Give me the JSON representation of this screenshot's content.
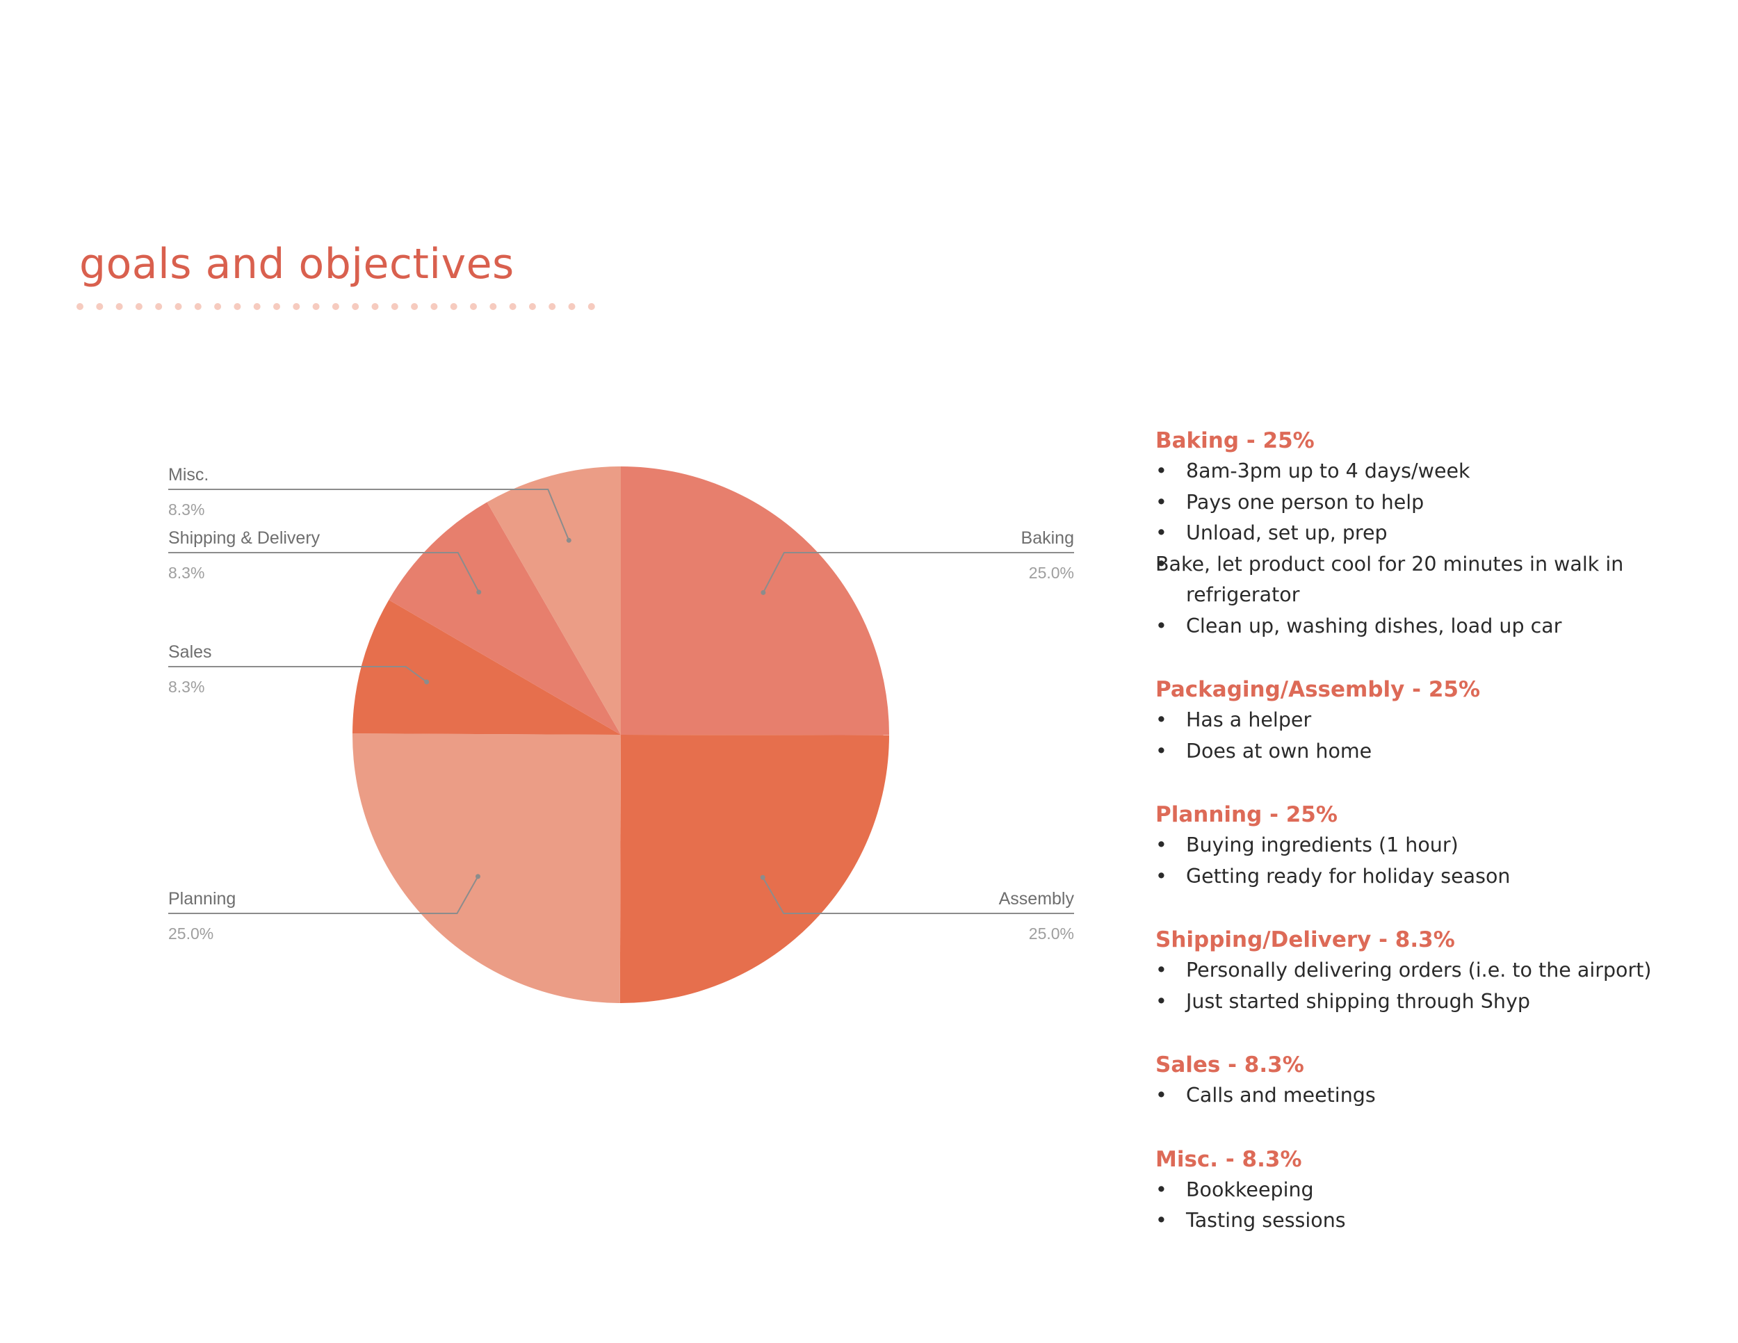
{
  "page": {
    "title": "goals and objectives"
  },
  "colors": {
    "title": "#d9604e",
    "section_title": "#dd6a57",
    "body_text": "#2a2a2a",
    "label_text": "#6e6e6e",
    "pct_text": "#9e9e9e",
    "leader_line": "#8c8c8c",
    "title_dots": "#f6cbbf"
  },
  "chart_data": {
    "type": "pie",
    "start_angle_deg": 0,
    "direction": "clockwise",
    "slices": [
      {
        "label": "Baking",
        "value": 25.0,
        "pct_label": "25.0%",
        "color": "#e77f6d"
      },
      {
        "label": "Assembly",
        "value": 25.0,
        "pct_label": "25.0%",
        "color": "#e66f4d"
      },
      {
        "label": "Planning",
        "value": 25.0,
        "pct_label": "25.0%",
        "color": "#eb9d86"
      },
      {
        "label": "Sales",
        "value": 8.3,
        "pct_label": "8.3%",
        "color": "#e66f4d"
      },
      {
        "label": "Shipping & Delivery",
        "value": 8.3,
        "pct_label": "8.3%",
        "color": "#e77f6d"
      },
      {
        "label": "Misc.",
        "value": 8.3,
        "pct_label": "8.3%",
        "color": "#eb9d86"
      }
    ],
    "label_style": "outside labels with leader lines"
  },
  "notes": [
    {
      "title": "Baking - 25%",
      "bullets": [
        "8am-3pm up to 4 days/week",
        "Pays one person to help",
        "Unload, set up, prep",
        "Bake, let product cool for 20 minutes in walk in refrigerator",
        "Clean up, washing dishes, load up car"
      ]
    },
    {
      "title": "Packaging/Assembly - 25%",
      "bullets": [
        "Has a helper",
        "Does at own home"
      ]
    },
    {
      "title": "Planning - 25%",
      "bullets": [
        "Buying ingredients (1 hour)",
        "Getting ready for holiday season"
      ]
    },
    {
      "title": "Shipping/Delivery - 8.3%",
      "bullets": [
        "Personally delivering orders (i.e. to the airport)",
        "Just started shipping through Shyp"
      ]
    },
    {
      "title": "Sales - 8.3%",
      "bullets": [
        "Calls and meetings"
      ]
    },
    {
      "title": "Misc. - 8.3%",
      "bullets": [
        "Bookkeeping",
        "Tasting sessions"
      ]
    }
  ]
}
